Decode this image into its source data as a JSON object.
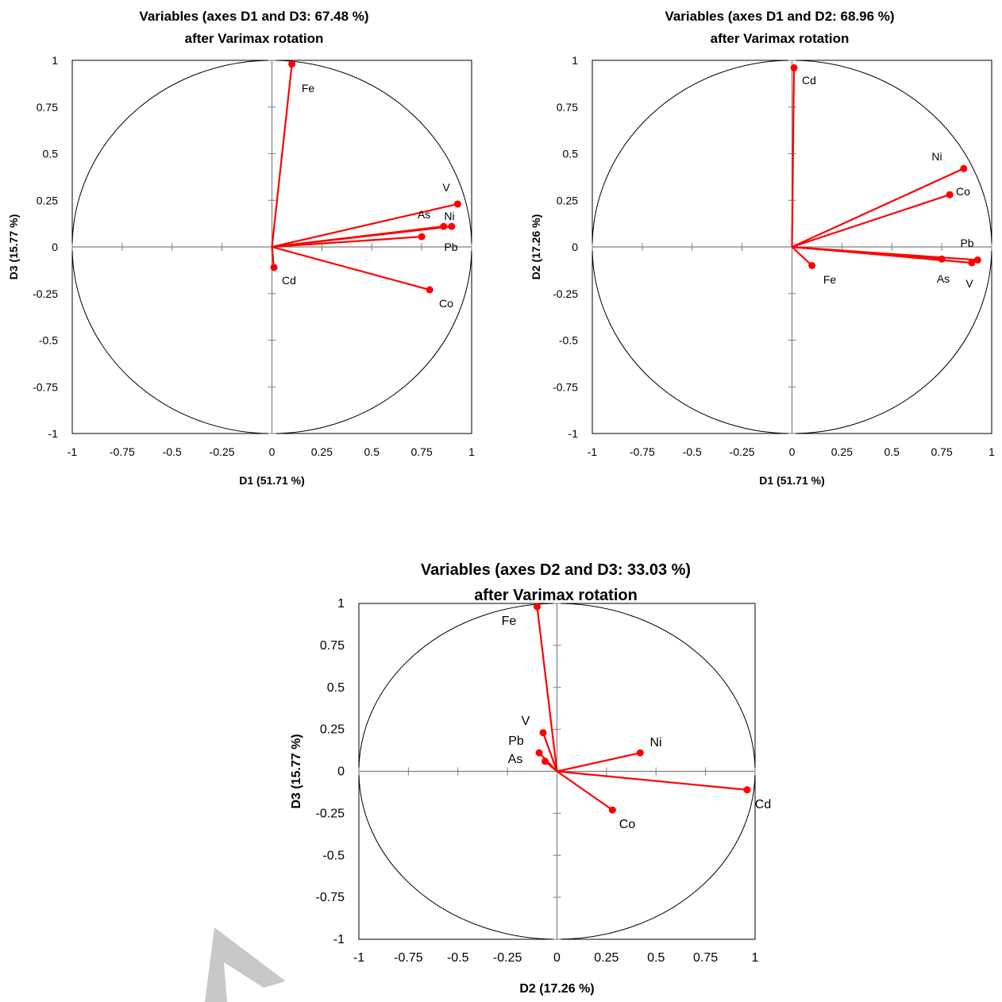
{
  "chart_data": [
    {
      "type": "scatter",
      "title": "Variables (axes D1 and D3: 67.48 %)",
      "subtitle": "after Varimax rotation",
      "xlabel": "D1 (51.71 %)",
      "ylabel": "D3 (15.77 %)",
      "xlim": [
        -1,
        1
      ],
      "ylim": [
        -1,
        1
      ],
      "ticks": [
        "-1",
        "-0.75",
        "-0.5",
        "-0.25",
        "0",
        "0.25",
        "0.5",
        "0.75",
        "1"
      ],
      "grid": false,
      "correlation_circle": true,
      "color": "#ff0000",
      "points": [
        {
          "label": "Fe",
          "x": 0.1,
          "y": 0.98
        },
        {
          "label": "V",
          "x": 0.93,
          "y": 0.23
        },
        {
          "label": "As",
          "x": 0.86,
          "y": 0.11
        },
        {
          "label": "Ni",
          "x": 0.9,
          "y": 0.11
        },
        {
          "label": "Pb",
          "x": 0.75,
          "y": 0.055
        },
        {
          "label": "Cd",
          "x": 0.01,
          "y": -0.11
        },
        {
          "label": "Co",
          "x": 0.79,
          "y": -0.23
        }
      ]
    },
    {
      "type": "scatter",
      "title": "Variables (axes D1 and D2: 68.96 %)",
      "subtitle": "after Varimax rotation",
      "xlabel": "D1 (51.71 %)",
      "ylabel": "D2 (17.26 %)",
      "xlim": [
        -1,
        1
      ],
      "ylim": [
        -1,
        1
      ],
      "ticks": [
        "-1",
        "-0.75",
        "-0.5",
        "-0.25",
        "0",
        "0.25",
        "0.5",
        "0.75",
        "1"
      ],
      "grid": false,
      "correlation_circle": true,
      "color": "#ff0000",
      "points": [
        {
          "label": "Cd",
          "x": 0.01,
          "y": 0.96
        },
        {
          "label": "Ni",
          "x": 0.86,
          "y": 0.42
        },
        {
          "label": "Co",
          "x": 0.79,
          "y": 0.28
        },
        {
          "label": "Pb",
          "x": 0.93,
          "y": -0.07
        },
        {
          "label": "As",
          "x": 0.75,
          "y": -0.065
        },
        {
          "label": "V",
          "x": 0.9,
          "y": -0.085
        },
        {
          "label": "Fe",
          "x": 0.1,
          "y": -0.1
        }
      ]
    },
    {
      "type": "scatter",
      "title": "Variables (axes D2 and D3: 33.03 %)",
      "subtitle": "after Varimax rotation",
      "xlabel": "D2 (17.26 %)",
      "ylabel": "D3 (15.77 %)",
      "xlim": [
        -1,
        1
      ],
      "ylim": [
        -1,
        1
      ],
      "ticks": [
        "-1",
        "-0.75",
        "-0.5",
        "-0.25",
        "0",
        "0.25",
        "0.5",
        "0.75",
        "1"
      ],
      "grid": false,
      "correlation_circle": true,
      "color": "#ff0000",
      "points": [
        {
          "label": "Fe",
          "x": -0.1,
          "y": 0.98
        },
        {
          "label": "V",
          "x": -0.07,
          "y": 0.23
        },
        {
          "label": "Pb",
          "x": -0.09,
          "y": 0.11
        },
        {
          "label": "As",
          "x": -0.06,
          "y": 0.06
        },
        {
          "label": "Ni",
          "x": 0.42,
          "y": 0.11
        },
        {
          "label": "Cd",
          "x": 0.96,
          "y": -0.11
        },
        {
          "label": "Co",
          "x": 0.28,
          "y": -0.23
        }
      ]
    }
  ]
}
